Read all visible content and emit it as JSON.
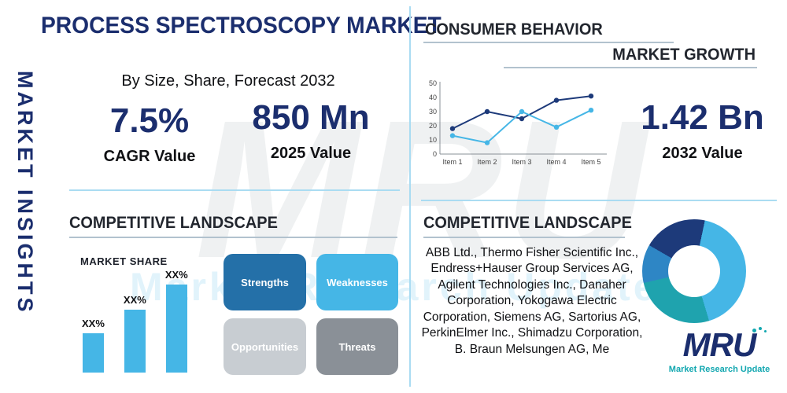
{
  "watermark": {
    "big": "MRU",
    "sub": "Market Research Update"
  },
  "sidebar": {
    "vertical_label": "MARKET INSIGHTS"
  },
  "header": {
    "title": "PROCESS SPECTROSCOPY MARKET",
    "subtitle": "By Size, Share, Forecast 2032"
  },
  "stats": {
    "cagr": {
      "value": "7.5%",
      "label": "CAGR Value"
    },
    "v2025": {
      "value": "850 Mn",
      "label": "2025 Value"
    },
    "v2032": {
      "value": "1.42 Bn",
      "label": "2032 Value"
    }
  },
  "sections": {
    "consumer_behavior": "CONSUMER BEHAVIOR",
    "market_growth": "MARKET GROWTH",
    "competitive_landscape_left": "COMPETITIVE LANDSCAPE",
    "competitive_landscape_right": "COMPETITIVE LANDSCAPE"
  },
  "chart_data": [
    {
      "type": "line",
      "x": [
        "Item 1",
        "Item 2",
        "Item 3",
        "Item 4",
        "Item 5"
      ],
      "series": [
        {
          "name": "series-dark-blue",
          "color": "#1d3a7a",
          "values": [
            18,
            30,
            25,
            38,
            41
          ]
        },
        {
          "name": "series-light-blue",
          "color": "#45b6e6",
          "values": [
            13,
            8,
            30,
            19,
            31
          ]
        }
      ],
      "ylim": [
        0,
        50
      ],
      "yticks": [
        0,
        10,
        20,
        30,
        40,
        50
      ],
      "grid": false,
      "legend": "none"
    },
    {
      "type": "bar",
      "title": "MARKET SHARE",
      "categories": [
        "XX%",
        "XX%",
        "XX%"
      ],
      "values": [
        30,
        48,
        67
      ],
      "bar_color": "#45b6e6"
    },
    {
      "type": "pie",
      "slices": [
        {
          "name": "segment-navy",
          "color": "#1d3a7a",
          "value": 20
        },
        {
          "name": "segment-sky-blue",
          "color": "#45b6e6",
          "value": 42
        },
        {
          "name": "segment-teal",
          "color": "#1fa3ae",
          "value": 26
        },
        {
          "name": "segment-blue",
          "color": "#2e86c5",
          "value": 12
        }
      ]
    }
  ],
  "swot": [
    {
      "label": "Strengths",
      "color": "#2470a8"
    },
    {
      "label": "Weaknesses",
      "color": "#45b6e6"
    },
    {
      "label": "Opportunities",
      "color": "#c8cdd2"
    },
    {
      "label": "Threats",
      "color": "#8a9097"
    }
  ],
  "companies": "ABB Ltd., Thermo Fisher Scientific Inc., Endress+Hauser Group Services AG, Agilent Technologies Inc., Danaher Corporation, Yokogawa Electric Corporation, Siemens AG, Sartorius AG, PerkinElmer Inc., Shimadzu Corporation, B. Braun Melsungen AG, Me",
  "logo": {
    "text": "MRU",
    "tagline": "Market Research Update"
  },
  "colors": {
    "navy": "#1b2e6e",
    "cyan": "#45b6e6",
    "teal": "#12a7b0",
    "divider": "#aadcf2"
  }
}
